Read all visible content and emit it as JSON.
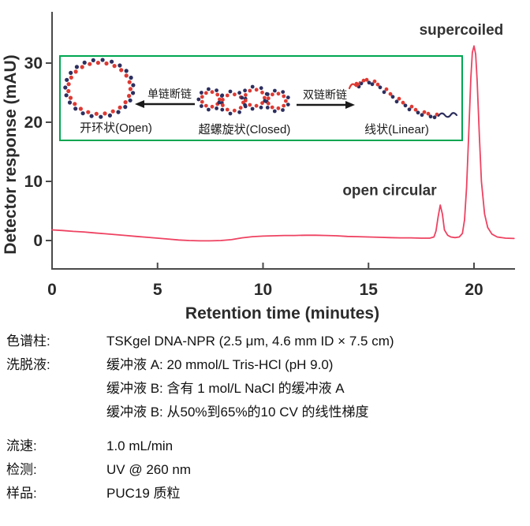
{
  "chart_data": {
    "type": "line",
    "title": "",
    "xlabel": "Retention time (minutes)",
    "ylabel": "Detector response (mAU)",
    "xlim": [
      0,
      21.9
    ],
    "ylim": [
      -4.8,
      38.7
    ],
    "x_ticks": [
      0,
      5,
      10,
      15,
      20
    ],
    "y_ticks": [
      0,
      10,
      20,
      30
    ],
    "grid": false,
    "series": [
      {
        "name": "UV 260 nm detector response",
        "color": "#ee4261",
        "points": [
          [
            0,
            1.8
          ],
          [
            0.5,
            1.7
          ],
          [
            1,
            1.55
          ],
          [
            1.5,
            1.45
          ],
          [
            2,
            1.3
          ],
          [
            2.5,
            1.15
          ],
          [
            3,
            1.0
          ],
          [
            3.5,
            0.85
          ],
          [
            4,
            0.7
          ],
          [
            4.5,
            0.55
          ],
          [
            5,
            0.4
          ],
          [
            5.5,
            0.25
          ],
          [
            6,
            0.1
          ],
          [
            6.5,
            0.0
          ],
          [
            7,
            -0.05
          ],
          [
            7.5,
            -0.05
          ],
          [
            8,
            0.0
          ],
          [
            8.5,
            0.15
          ],
          [
            9,
            0.45
          ],
          [
            9.5,
            0.65
          ],
          [
            10,
            0.75
          ],
          [
            10.5,
            0.8
          ],
          [
            11,
            0.85
          ],
          [
            11.5,
            0.85
          ],
          [
            12,
            0.9
          ],
          [
            12.5,
            0.9
          ],
          [
            13,
            0.85
          ],
          [
            13.5,
            0.8
          ],
          [
            14,
            0.7
          ],
          [
            14.5,
            0.65
          ],
          [
            15,
            0.6
          ],
          [
            15.5,
            0.55
          ],
          [
            16,
            0.5
          ],
          [
            16.5,
            0.45
          ],
          [
            17,
            0.45
          ],
          [
            17.5,
            0.4
          ],
          [
            17.9,
            0.4
          ],
          [
            18.1,
            0.6
          ],
          [
            18.2,
            1.6
          ],
          [
            18.3,
            4.0
          ],
          [
            18.4,
            6.0
          ],
          [
            18.5,
            4.5
          ],
          [
            18.6,
            1.8
          ],
          [
            18.75,
            0.9
          ],
          [
            18.9,
            0.6
          ],
          [
            19.1,
            0.5
          ],
          [
            19.3,
            0.6
          ],
          [
            19.45,
            1.2
          ],
          [
            19.55,
            3.5
          ],
          [
            19.65,
            9.0
          ],
          [
            19.75,
            18.0
          ],
          [
            19.85,
            27.5
          ],
          [
            19.92,
            31.8
          ],
          [
            20.0,
            32.9
          ],
          [
            20.08,
            31.5
          ],
          [
            20.15,
            27.0
          ],
          [
            20.25,
            18.0
          ],
          [
            20.35,
            10.0
          ],
          [
            20.5,
            4.5
          ],
          [
            20.65,
            2.2
          ],
          [
            20.85,
            1.1
          ],
          [
            21.1,
            0.6
          ],
          [
            21.5,
            0.4
          ],
          [
            21.9,
            0.35
          ]
        ]
      }
    ],
    "peaks": [
      {
        "name": "open circular",
        "retention_min": 18.4,
        "height_mau": 6.0
      },
      {
        "name": "supercoiled",
        "retention_min": 20.0,
        "height_mau": 32.9
      }
    ],
    "annotations": [
      {
        "text": "supercoiled",
        "x": 19.4,
        "y": 34.8
      },
      {
        "text": "open circular",
        "x": 16.0,
        "y": 7.7
      }
    ]
  },
  "chart_style": {
    "axis_color": "#4a4a4a",
    "curve_color": "#ee4261"
  },
  "inset": {
    "border_color": "#00a651",
    "dna_red": "#dd3a33",
    "dna_navy": "#2c2f5e",
    "items": [
      {
        "label": "开环状(Open)"
      },
      {
        "label": "超螺旋状(Closed)"
      },
      {
        "label": "线状(Linear)"
      }
    ],
    "arrows": [
      {
        "label": "单链断链",
        "direction": "left"
      },
      {
        "label": "双链断链",
        "direction": "right"
      }
    ]
  },
  "conditions": {
    "rows": [
      {
        "label": "色谱柱:",
        "value": "TSKgel DNA-NPR  (2.5 μm, 4.6 mm ID × 7.5 cm)"
      },
      {
        "label": "洗脱液:",
        "value": "缓冲液 A:  20 mmol/L Tris-HCl  (pH 9.0)"
      },
      {
        "label": "",
        "value": "缓冲液 B:  含有 1 mol/L NaCl 的缓冲液 A"
      },
      {
        "label": "",
        "value": "缓冲液 B:  从50%到65%的10 CV 的线性梯度"
      },
      {
        "label": "流速:",
        "value": "1.0 mL/min"
      },
      {
        "label": "检测:",
        "value": "UV @ 260 nm"
      },
      {
        "label": "样品:",
        "value": "PUC19  质粒"
      }
    ]
  }
}
